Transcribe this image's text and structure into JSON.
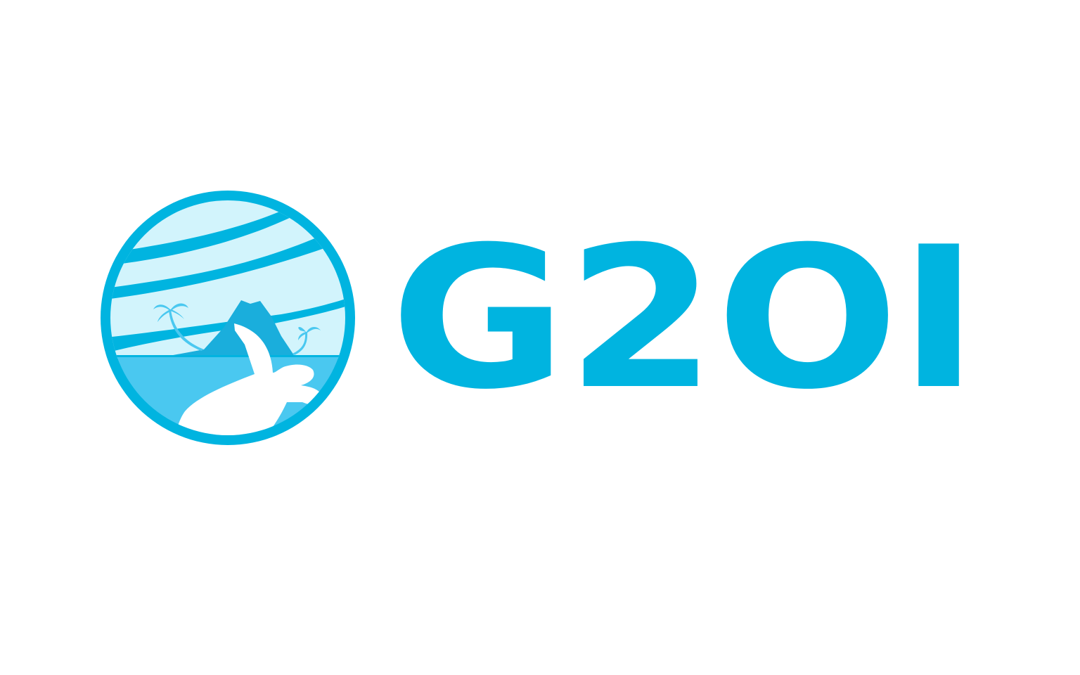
{
  "logo": {
    "text": "G2OI"
  }
}
